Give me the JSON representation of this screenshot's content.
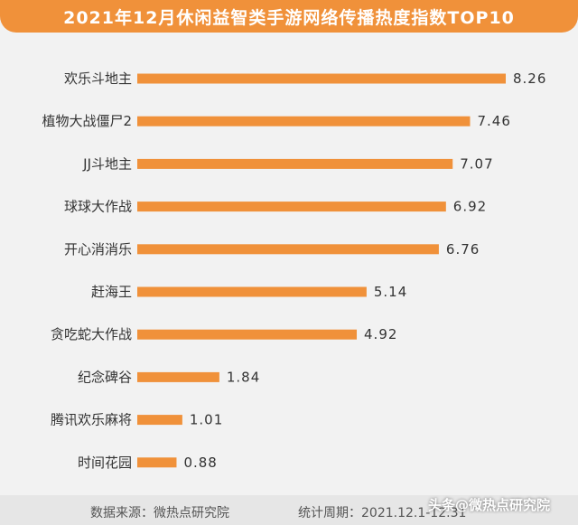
{
  "chart_data": {
    "type": "bar",
    "orientation": "horizontal",
    "title": "2021年12月休闲益智类手游网络传播热度指数TOP10",
    "categories": [
      "欢乐斗地主",
      "植物大战僵尸2",
      "JJ斗地主",
      "球球大作战",
      "开心消消乐",
      "赶海王",
      "贪吃蛇大作战",
      "纪念碑谷",
      "腾讯欢乐麻将",
      "时间花园"
    ],
    "values": [
      8.26,
      7.46,
      7.07,
      6.92,
      6.76,
      5.14,
      4.92,
      1.84,
      1.01,
      0.88
    ],
    "value_labels": [
      "8.26",
      "7.46",
      "7.07",
      "6.92",
      "6.76",
      "5.14",
      "4.92",
      "1.84",
      "1.01",
      "0.88"
    ],
    "xlim": [
      0,
      8.26
    ],
    "grid": false,
    "bar_color": "#f0913a"
  },
  "footer": {
    "source": "数据来源：微热点研究院",
    "period": "统计周期：2021.12.1-12.31"
  },
  "watermark": "头条@微热点研究院"
}
